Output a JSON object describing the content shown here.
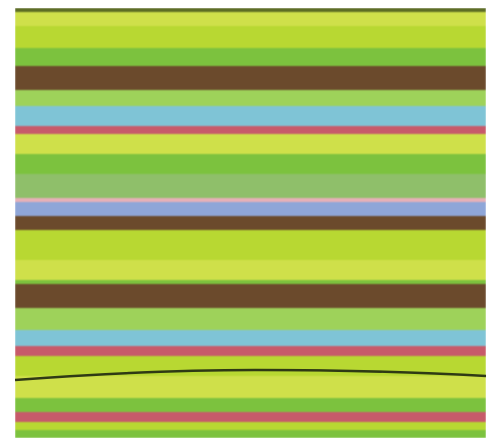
{
  "image": {
    "description_hidden": "",
    "palette": {
      "dark_olive": "#5b6b24",
      "lime": "#b8d832",
      "yellow_green": "#cfe04a",
      "green": "#7cc23e",
      "light_green": "#9ed25a",
      "brown": "#6b4a2c",
      "sky_blue": "#7fc4d6",
      "pink": "#c75a6a",
      "sage": "#8fbf6a",
      "lavender_blue": "#8fa6d8",
      "pale_pink": "#e7b0b8",
      "dark_green_line": "#2f3a14"
    },
    "bands": [
      {
        "color": "#5b6b24"
      },
      {
        "color": "#cfe04a"
      },
      {
        "color": "#b8d832"
      },
      {
        "color": "#7cc23e"
      },
      {
        "color": "#6b4a2c"
      },
      {
        "color": "#9ed25a"
      },
      {
        "color": "#7fc4d6"
      },
      {
        "color": "#c75a6a"
      },
      {
        "color": "#cfe04a"
      },
      {
        "color": "#7cc23e"
      },
      {
        "color": "#8fbf6a"
      },
      {
        "color": "#e7b0b8"
      },
      {
        "color": "#8fa6d8"
      },
      {
        "color": "#6b4a2c"
      },
      {
        "color": "#b8d832"
      },
      {
        "color": "#cfe04a"
      },
      {
        "color": "#7cc23e"
      },
      {
        "color": "#6b4a2c"
      },
      {
        "color": "#9ed25a"
      },
      {
        "color": "#7fc4d6"
      },
      {
        "color": "#c75a6a"
      },
      {
        "color": "#b8d832"
      },
      {
        "color": "#cfe04a"
      },
      {
        "color": "#7cc23e"
      },
      {
        "color": "#c75a6a"
      },
      {
        "color": "#b8d832"
      },
      {
        "color": "#7cc23e"
      }
    ]
  }
}
